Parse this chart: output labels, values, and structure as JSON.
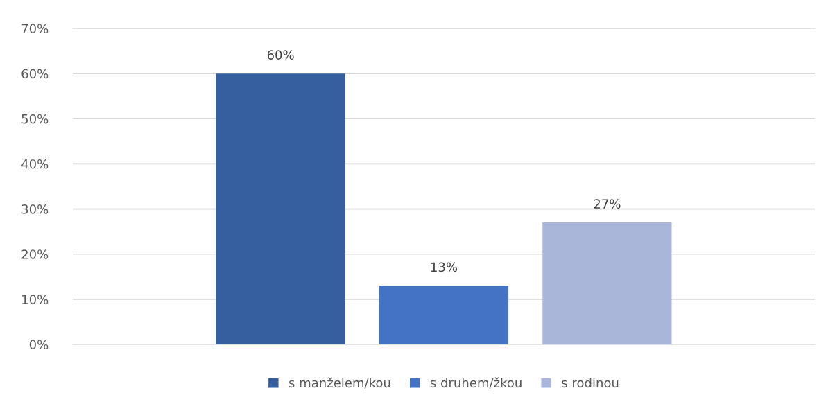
{
  "chart_data": {
    "type": "bar",
    "categories": [
      null
    ],
    "series": [
      {
        "name": "s manželem/kou",
        "color": "#365fa0",
        "values": [
          60
        ],
        "value_labels": [
          "60%"
        ]
      },
      {
        "name": "s druhem/žkou",
        "color": "#4472c4",
        "values": [
          13
        ],
        "value_labels": [
          "13%"
        ]
      },
      {
        "name": "s rodinou",
        "color": "#a9b6da",
        "values": [
          27
        ],
        "value_labels": [
          "27%"
        ]
      }
    ],
    "ylim": [
      0,
      70
    ],
    "yticks": [
      {
        "value": 0,
        "label": "0%"
      },
      {
        "value": 10,
        "label": "10%"
      },
      {
        "value": 20,
        "label": "20%"
      },
      {
        "value": 30,
        "label": "30%"
      },
      {
        "value": 40,
        "label": "40%"
      },
      {
        "value": 50,
        "label": "50%"
      },
      {
        "value": 60,
        "label": "60%"
      },
      {
        "value": 70,
        "label": "70%"
      }
    ],
    "grid": "y",
    "legend": "bottom"
  }
}
